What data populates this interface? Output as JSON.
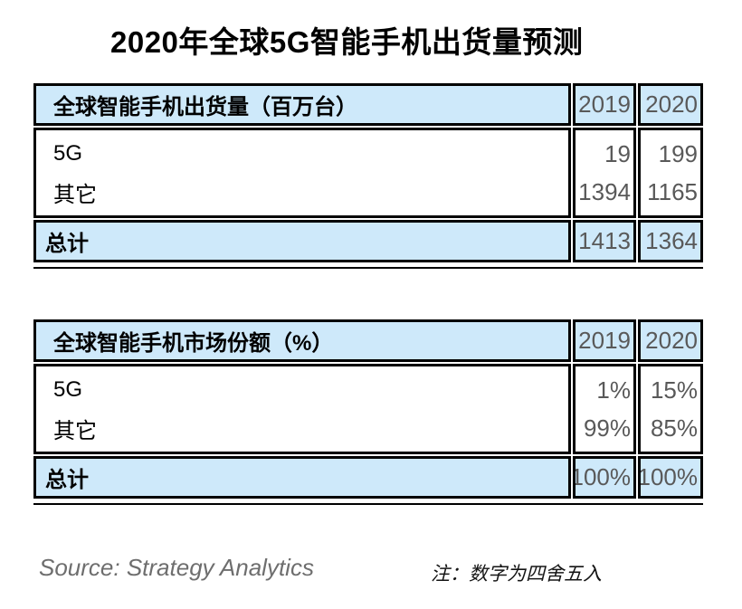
{
  "page": {
    "title": "2020年全球5G智能手机出货量预测"
  },
  "colors": {
    "highlight_bg": "#cee9fa",
    "border": "#000000",
    "number_text": "#595959",
    "label_text": "#000000",
    "source_text": "#6e6e6e"
  },
  "chart_data": [
    {
      "type": "table",
      "title": "全球智能手机出货量（百万台）",
      "columns": [
        "",
        "2019",
        "2020"
      ],
      "rows": [
        [
          "5G",
          19,
          199
        ],
        [
          "其它",
          1394,
          1165
        ],
        [
          "总计",
          1413,
          1364
        ]
      ]
    },
    {
      "type": "table",
      "title": "全球智能手机市场份额（%）",
      "columns": [
        "",
        "2019",
        "2020"
      ],
      "rows": [
        [
          "5G",
          "1%",
          "15%"
        ],
        [
          "其它",
          "99%",
          "85%"
        ],
        [
          "总计",
          "100%",
          "100%"
        ]
      ]
    }
  ],
  "footer": {
    "source": "Source: Strategy Analytics",
    "note": "注：数字为四舍五入"
  }
}
